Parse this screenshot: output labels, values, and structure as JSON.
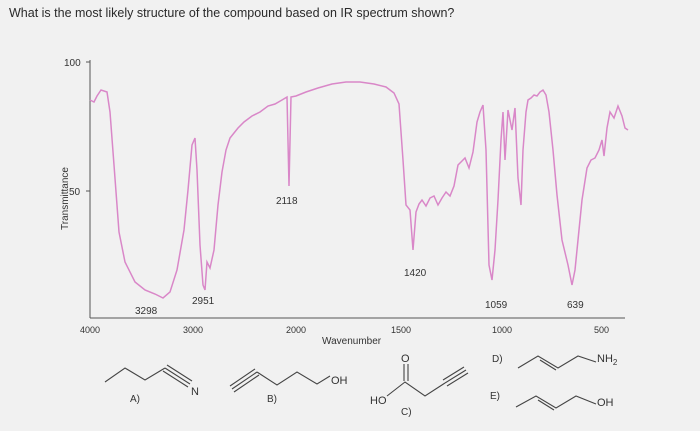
{
  "question": "What is the most likely structure of the compound based on IR spectrum shown?",
  "chart_data": {
    "type": "line",
    "ylabel": "Transmittance",
    "xlabel": "Wavenumber",
    "y_ticks": [
      "100",
      "50"
    ],
    "x_ticks": [
      "4000",
      "3000",
      "2000",
      "1500",
      "1000",
      "500"
    ],
    "peak_labels": [
      "3298",
      "2951",
      "2118",
      "1420",
      "1059",
      "639"
    ],
    "series_color": "#d987c8"
  },
  "options": {
    "a": {
      "label": "A)"
    },
    "b": {
      "label": "B)",
      "group": "OH"
    },
    "c": {
      "label": "C)",
      "group": "HO",
      "atom": "O"
    },
    "d": {
      "label": "D)",
      "group": "NH",
      "subscript": "2"
    },
    "e": {
      "label": "E)",
      "group": "OH"
    },
    "nitrile_atom": "N"
  }
}
